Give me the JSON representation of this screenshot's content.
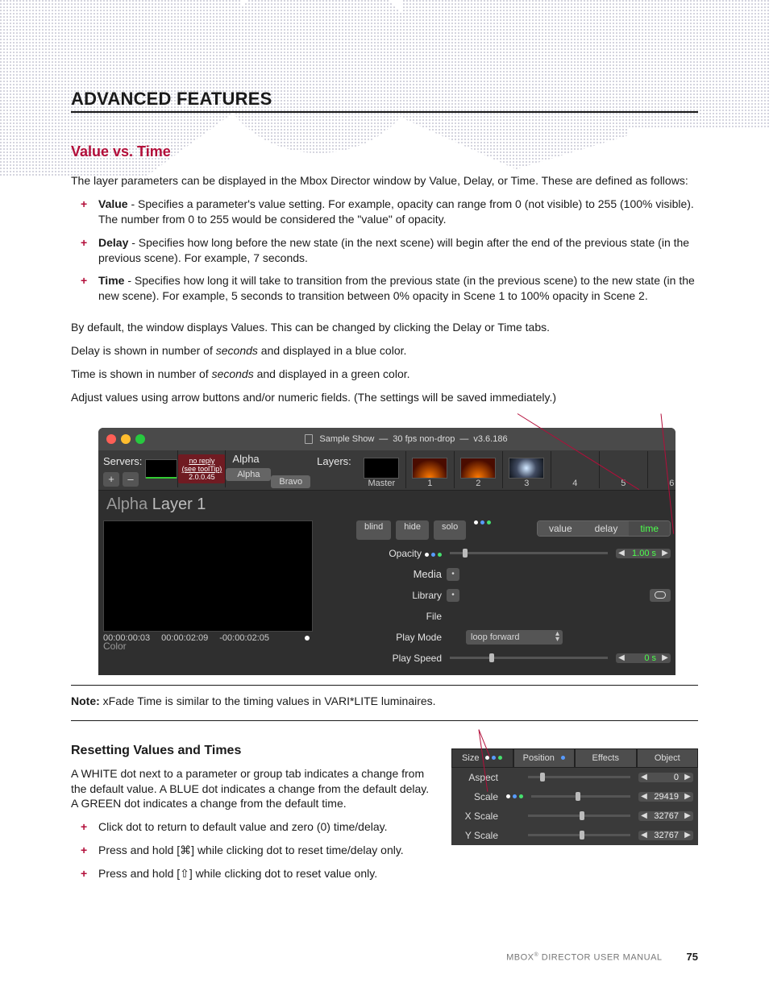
{
  "colors": {
    "accent": "#b30e3a",
    "time_green": "#4cff4c",
    "ui_bg": "#3a3a3a",
    "traffic": {
      "close": "#ff5f56",
      "min": "#ffbd2e",
      "zoom": "#27c93f"
    }
  },
  "heading_main": "ADVANCED FEATURES",
  "section_title": "Value vs. Time",
  "intro": "The layer parameters can be displayed in the Mbox Director window by Value, Delay, or Time. These are defined as follows:",
  "defs": [
    {
      "term": "Value",
      "text": " - Specifies a parameter's value setting. For example, opacity can range from 0 (not visible) to 255 (100% visible). The number from 0 to 255 would be considered the \"value\" of opacity."
    },
    {
      "term": "Delay",
      "text": " - Specifies how long before the new state (in the next scene) will begin after the end of the previous state (in the previous scene). For example, 7 seconds."
    },
    {
      "term": "Time",
      "text": " - Specifies how long it will take to transition from the previous state (in the previous scene) to the new state (in the new scene). For example, 5 seconds to transition between 0% opacity in Scene 1 to 100% opacity in Scene 2."
    }
  ],
  "para_default": "By default, the window displays Values. This can be changed by clicking the Delay or Time tabs.",
  "para_delay_pre": "Delay is shown in number of ",
  "seconds_word": "seconds",
  "para_delay_post": " and displayed in a blue color.",
  "para_time_pre": "Time is shown in number of ",
  "para_time_post": " and displayed in a green color.",
  "para_adjust": "Adjust values using arrow buttons and/or numeric fields. (The settings will be saved immediately.)",
  "shot": {
    "title_parts": [
      "Sample Show",
      "—",
      "30 fps non-drop",
      "—",
      "v3.6.186"
    ],
    "servers_label": "Servers:",
    "add": "+",
    "sub": "–",
    "server_tabs": [
      "Alpha",
      "Bravo"
    ],
    "noreply": {
      "l1": "no reply",
      "l2": "(see toolTip)",
      "l3": "2.0.0.45"
    },
    "layers_label": "Layers:",
    "layers_header": "Alpha",
    "layer_tabs": [
      "Master",
      "1",
      "2",
      "3",
      "4",
      "5",
      "6"
    ],
    "layertitle_pre": "Alpha ",
    "layertitle_main": "Layer 1",
    "mode_buttons": [
      "blind",
      "hide",
      "solo"
    ],
    "vdt_tabs": [
      "value",
      "delay",
      "time"
    ],
    "rows": {
      "opacity": "Opacity",
      "media": "Media",
      "library": "Library",
      "file": "File",
      "playmode": "Play Mode",
      "playspeed": "Play Speed"
    },
    "opacity_val": "1.00 s",
    "playmode_val": "loop forward",
    "playspeed_val": "0 s",
    "tc": [
      "00:00:00:03",
      "00:00:02:09",
      "-00:00:02:05"
    ],
    "colorlbl": "Color"
  },
  "note_label": "Note:",
  "note_text": "  xFade Time is similar to the timing values in VARI*LITE luminaires.",
  "reset": {
    "heading": "Resetting Values and Times",
    "para": "A WHITE dot next to a parameter or group tab indicates a change from the default value. A BLUE dot indicates a change from the default delay. A GREEN dot indicates a change from the default time.",
    "items": [
      "Click dot to return to default value and zero (0) time/delay.",
      "Press and hold [⌘] while clicking dot to reset time/delay only.",
      "Press and hold [⇧] while clicking dot to reset value only."
    ]
  },
  "panel2": {
    "tabs": [
      "Size",
      "Position",
      "Effects",
      "Object"
    ],
    "tab_dots": [
      [
        "w",
        "b",
        "g"
      ],
      [
        "b"
      ],
      [],
      []
    ],
    "rows": [
      {
        "label": "Aspect",
        "dots": [],
        "val": "0",
        "knob": 0.12
      },
      {
        "label": "Scale",
        "dots": [
          "w",
          "b",
          "g"
        ],
        "val": "29419",
        "knob": 0.45
      },
      {
        "label": "X Scale",
        "dots": [],
        "val": "32767",
        "knob": 0.5
      },
      {
        "label": "Y Scale",
        "dots": [],
        "val": "32767",
        "knob": 0.5
      }
    ]
  },
  "footer": {
    "text_pre": "MBOX",
    "text_post": " DIRECTOR USER MANUAL",
    "page": "75"
  }
}
